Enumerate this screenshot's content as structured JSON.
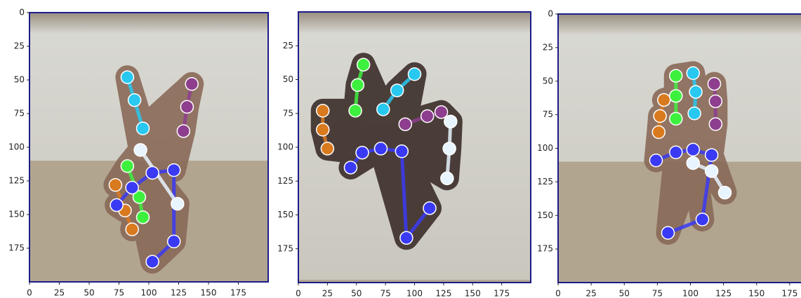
{
  "chart_data": [
    {
      "type": "scatter",
      "xlim": [
        0,
        200
      ],
      "ylim": [
        200,
        0
      ],
      "xticks": [
        0,
        25,
        50,
        75,
        100,
        125,
        150,
        175
      ],
      "yticks": [
        0,
        25,
        50,
        75,
        100,
        125,
        150,
        175
      ],
      "series": [
        {
          "color": "#d97a1f",
          "x": [
            72,
            80,
            86
          ],
          "y": [
            128,
            147,
            161
          ]
        },
        {
          "color": "#3ef03e",
          "x": [
            82,
            92,
            95
          ],
          "y": [
            114,
            137,
            152
          ]
        },
        {
          "color": "#28c8f0",
          "x": [
            82,
            88,
            95
          ],
          "y": [
            48,
            65,
            86
          ]
        },
        {
          "color": "#8e3e8e",
          "x": [
            136,
            132,
            129
          ],
          "y": [
            53,
            70,
            88
          ]
        },
        {
          "color": "#3a3af5",
          "x": [
            73,
            86,
            103,
            121,
            121,
            103
          ],
          "y": [
            143,
            130,
            119,
            117,
            170,
            185
          ]
        },
        {
          "color": "#e8f4ff",
          "x": [
            93,
            124
          ],
          "y": [
            102,
            142
          ]
        }
      ]
    },
    {
      "type": "scatter",
      "xlim": [
        0,
        200
      ],
      "ylim": [
        200,
        0
      ],
      "xticks": [
        0,
        25,
        50,
        75,
        100,
        125,
        150,
        175
      ],
      "yticks": [
        25,
        50,
        75,
        100,
        125,
        150,
        175
      ],
      "series": [
        {
          "color": "#d97a1f",
          "x": [
            21,
            21,
            25
          ],
          "y": [
            73,
            87,
            101
          ]
        },
        {
          "color": "#3ef03e",
          "x": [
            56,
            51,
            49
          ],
          "y": [
            39,
            54,
            73
          ]
        },
        {
          "color": "#28c8f0",
          "x": [
            73,
            85,
            100
          ],
          "y": [
            72,
            58,
            46
          ]
        },
        {
          "color": "#8e3e8e",
          "x": [
            92,
            111,
            123
          ],
          "y": [
            83,
            77,
            74
          ]
        },
        {
          "color": "#3a3af5",
          "x": [
            45,
            55,
            71,
            89,
            93,
            113
          ],
          "y": [
            115,
            104,
            101,
            103,
            167,
            145
          ]
        },
        {
          "color": "#e8f4ff",
          "x": [
            131,
            130,
            128
          ],
          "y": [
            81,
            101,
            123
          ]
        }
      ]
    },
    {
      "type": "scatter",
      "xlim": [
        0,
        200
      ],
      "ylim": [
        200,
        0
      ],
      "xticks": [
        0,
        25,
        50,
        75,
        100,
        125,
        150,
        175
      ],
      "yticks": [
        0,
        25,
        50,
        75,
        100,
        125,
        150,
        175
      ],
      "series": [
        {
          "color": "#d97a1f",
          "x": [
            76,
            77,
            80
          ],
          "y": [
            88,
            76,
            64
          ]
        },
        {
          "color": "#3ef03e",
          "x": [
            89,
            89,
            89
          ],
          "y": [
            46,
            61,
            78
          ]
        },
        {
          "color": "#28c8f0",
          "x": [
            102,
            104,
            103
          ],
          "y": [
            44,
            58,
            74
          ]
        },
        {
          "color": "#8e3e8e",
          "x": [
            118,
            119,
            119
          ],
          "y": [
            52,
            65,
            82
          ]
        },
        {
          "color": "#3a3af5",
          "x": [
            74,
            89,
            102,
            116,
            109,
            83
          ],
          "y": [
            109,
            103,
            101,
            105,
            153,
            163
          ]
        },
        {
          "color": "#e8f4ff",
          "x": [
            102,
            116,
            126
          ],
          "y": [
            111,
            117,
            133
          ]
        }
      ]
    }
  ]
}
